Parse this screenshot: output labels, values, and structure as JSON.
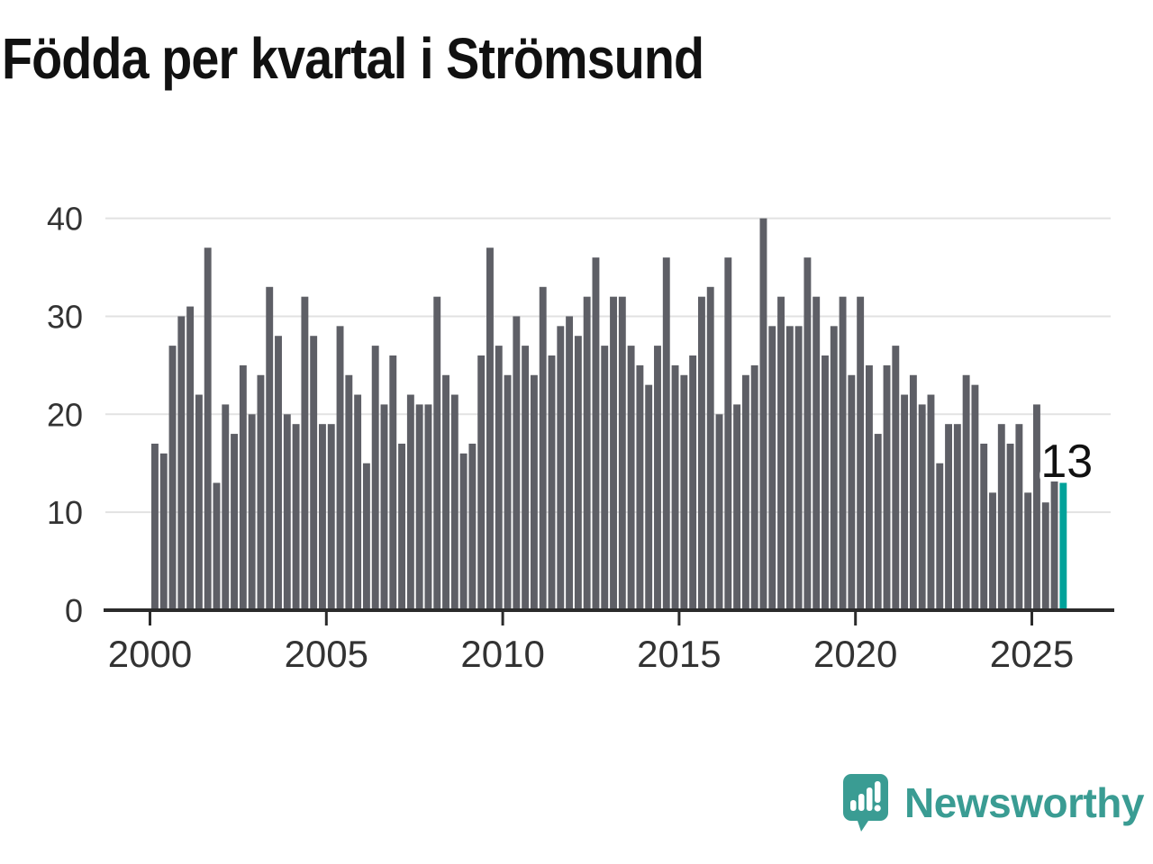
{
  "chart_data": {
    "type": "bar",
    "title": "Födda per kvartal i Strömsund",
    "x_unit": "quarter",
    "x_start": "2000-Q1",
    "x_end": "2025-Q4",
    "x_tick_labels": [
      "2000",
      "2005",
      "2010",
      "2015",
      "2020",
      "2025"
    ],
    "x_tick_indices": [
      0,
      20,
      40,
      60,
      80,
      100
    ],
    "y_tick_labels": [
      "0",
      "10",
      "20",
      "30",
      "40"
    ],
    "y_ticks": [
      0,
      10,
      20,
      30,
      40
    ],
    "ylim": [
      0,
      40
    ],
    "grid": "horizontal",
    "legend_position": "none",
    "values": [
      17,
      16,
      27,
      30,
      31,
      22,
      37,
      13,
      21,
      18,
      25,
      20,
      24,
      33,
      28,
      20,
      19,
      32,
      28,
      19,
      19,
      29,
      24,
      22,
      15,
      27,
      21,
      26,
      17,
      22,
      21,
      21,
      32,
      24,
      22,
      16,
      17,
      26,
      37,
      27,
      24,
      30,
      27,
      24,
      33,
      26,
      29,
      30,
      28,
      32,
      36,
      27,
      32,
      32,
      27,
      25,
      23,
      27,
      36,
      25,
      24,
      26,
      32,
      33,
      20,
      36,
      21,
      24,
      25,
      40,
      29,
      32,
      29,
      29,
      36,
      32,
      26,
      29,
      32,
      24,
      32,
      25,
      18,
      25,
      27,
      22,
      24,
      21,
      22,
      15,
      19,
      19,
      24,
      23,
      17,
      12,
      19,
      17,
      19,
      12,
      21,
      11,
      14,
      13
    ],
    "highlight_index": 103,
    "highlight_label": "13",
    "colors": {
      "bar": "#5e5f66",
      "highlight": "#00a29a",
      "grid": "#e2e2e2",
      "axis": "#2b2b2b",
      "title": "#111111",
      "tick_label": "#333333",
      "callout_text": "#111111",
      "callout_halo": "#ffffff"
    }
  },
  "footer": {
    "brand": "Newsworthy",
    "brand_color": "#3a9c93",
    "logo_icon": "speech-bubble-with-bar-chart-and-exclamation"
  }
}
